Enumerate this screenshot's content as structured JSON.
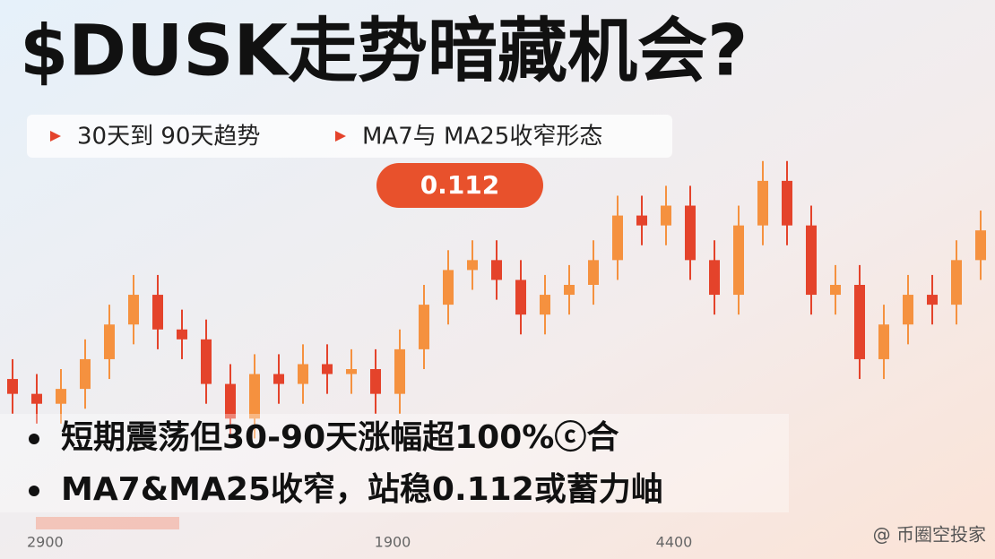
{
  "chart_data": {
    "type": "candlestick",
    "title": "$DUSK走势暗藏机会?",
    "legend": [
      "30天到 90天趋势",
      "MA7与 MA25收窄形态"
    ],
    "annotation": "0.112",
    "bullets": [
      "短期震荡但30-90天涨幅超100%ⓒ合",
      "MA7&MA25收窄，站稳0.112或蓄力岫"
    ],
    "xlabels": [
      "2900",
      "1900",
      "4400"
    ],
    "watermark": "@ 币圈空投家",
    "up_color": "#f5913f",
    "down_color": "#e4432b",
    "ylim": [
      0.05,
      0.135
    ],
    "open": [
      0.082,
      0.079,
      0.077,
      0.08,
      0.086,
      0.093,
      0.099,
      0.092,
      0.09,
      0.081,
      0.074,
      0.083,
      0.081,
      0.085,
      0.083,
      0.084,
      0.079,
      0.088,
      0.097,
      0.104,
      0.106,
      0.102,
      0.095,
      0.099,
      0.101,
      0.106,
      0.115,
      0.113,
      0.117,
      0.106,
      0.099,
      0.113,
      0.122,
      0.113,
      0.099,
      0.101,
      0.086,
      0.093,
      0.099,
      0.097,
      0.106
    ],
    "high": [
      0.086,
      0.083,
      0.084,
      0.09,
      0.097,
      0.103,
      0.103,
      0.096,
      0.094,
      0.085,
      0.087,
      0.087,
      0.089,
      0.089,
      0.088,
      0.088,
      0.092,
      0.101,
      0.108,
      0.11,
      0.11,
      0.106,
      0.103,
      0.105,
      0.11,
      0.119,
      0.119,
      0.121,
      0.121,
      0.11,
      0.117,
      0.126,
      0.126,
      0.117,
      0.105,
      0.105,
      0.097,
      0.103,
      0.103,
      0.11,
      0.116
    ],
    "low": [
      0.075,
      0.073,
      0.073,
      0.076,
      0.082,
      0.089,
      0.088,
      0.086,
      0.077,
      0.07,
      0.07,
      0.077,
      0.077,
      0.079,
      0.079,
      0.075,
      0.075,
      0.084,
      0.093,
      0.1,
      0.098,
      0.091,
      0.091,
      0.095,
      0.097,
      0.102,
      0.109,
      0.109,
      0.102,
      0.095,
      0.095,
      0.109,
      0.109,
      0.095,
      0.095,
      0.082,
      0.082,
      0.089,
      0.093,
      0.093,
      0.102
    ],
    "close": [
      0.079,
      0.077,
      0.08,
      0.086,
      0.093,
      0.099,
      0.092,
      0.09,
      0.081,
      0.074,
      0.083,
      0.081,
      0.085,
      0.083,
      0.084,
      0.079,
      0.088,
      0.097,
      0.104,
      0.106,
      0.102,
      0.095,
      0.099,
      0.101,
      0.106,
      0.115,
      0.113,
      0.117,
      0.106,
      0.099,
      0.113,
      0.122,
      0.113,
      0.099,
      0.101,
      0.086,
      0.093,
      0.099,
      0.097,
      0.106,
      0.112
    ]
  }
}
